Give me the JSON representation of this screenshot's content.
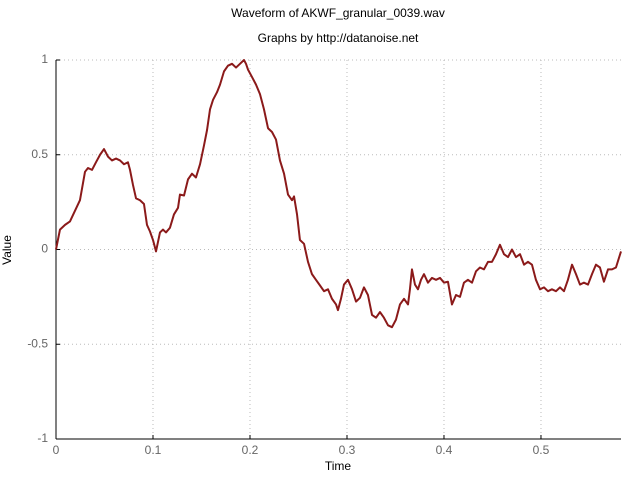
{
  "chart_data": {
    "type": "line",
    "title": "Waveform of AKWF_granular_0039.wav",
    "subtitle": "Graphs by http://datanoise.net",
    "x_label": "Time",
    "y_label": "Value",
    "color": "#8b1a1a",
    "grid": true,
    "xlim": [
      0,
      0.5825
    ],
    "ylim": [
      -1,
      1
    ],
    "xticks": [
      0,
      0.1,
      0.2,
      0.3,
      0.4,
      0.5
    ],
    "yticks": [
      -1,
      -0.5,
      0,
      0.5,
      1
    ],
    "x": [
      0,
      0.0041,
      0.0093,
      0.0144,
      0.0247,
      0.0299,
      0.033,
      0.0371,
      0.0412,
      0.0454,
      0.0495,
      0.0536,
      0.0577,
      0.0619,
      0.066,
      0.0701,
      0.0742,
      0.0763,
      0.0794,
      0.0825,
      0.0866,
      0.0907,
      0.0938,
      0.0969,
      0.1,
      0.1031,
      0.1072,
      0.1103,
      0.1134,
      0.1175,
      0.1216,
      0.1258,
      0.1278,
      0.132,
      0.1361,
      0.1402,
      0.1443,
      0.1485,
      0.1526,
      0.1557,
      0.1588,
      0.1619,
      0.166,
      0.1691,
      0.1732,
      0.1773,
      0.1814,
      0.1856,
      0.1897,
      0.1938,
      0.1959,
      0.1979,
      0.2021,
      0.2062,
      0.2103,
      0.2144,
      0.2186,
      0.2227,
      0.2268,
      0.2309,
      0.2351,
      0.2392,
      0.2433,
      0.2454,
      0.2485,
      0.2515,
      0.2557,
      0.2598,
      0.2639,
      0.268,
      0.2722,
      0.2763,
      0.2804,
      0.2845,
      0.2887,
      0.2907,
      0.2938,
      0.2969,
      0.301,
      0.3052,
      0.3093,
      0.3134,
      0.3175,
      0.3216,
      0.3258,
      0.3299,
      0.334,
      0.3381,
      0.3423,
      0.3464,
      0.3505,
      0.3546,
      0.3588,
      0.3629,
      0.3649,
      0.367,
      0.3701,
      0.3732,
      0.3763,
      0.3794,
      0.3835,
      0.3876,
      0.3918,
      0.3959,
      0.4,
      0.4041,
      0.4082,
      0.4124,
      0.4165,
      0.4206,
      0.4247,
      0.4289,
      0.433,
      0.4371,
      0.4412,
      0.4454,
      0.4495,
      0.4536,
      0.4577,
      0.4619,
      0.466,
      0.4701,
      0.4742,
      0.4784,
      0.4825,
      0.4866,
      0.4907,
      0.4948,
      0.499,
      0.5031,
      0.5072,
      0.5113,
      0.5155,
      0.5196,
      0.5237,
      0.5278,
      0.532,
      0.5361,
      0.5402,
      0.5443,
      0.5485,
      0.5526,
      0.5567,
      0.5608,
      0.5649,
      0.5691,
      0.5732,
      0.5773,
      0.5825
    ],
    "values": [
      0,
      0.105,
      0.13,
      0.148,
      0.26,
      0.41,
      0.43,
      0.42,
      0.46,
      0.5,
      0.53,
      0.49,
      0.47,
      0.48,
      0.47,
      0.45,
      0.46,
      0.42,
      0.34,
      0.27,
      0.26,
      0.24,
      0.13,
      0.095,
      0.05,
      -0.01,
      0.09,
      0.105,
      0.09,
      0.115,
      0.185,
      0.22,
      0.29,
      0.285,
      0.37,
      0.4,
      0.38,
      0.45,
      0.55,
      0.63,
      0.74,
      0.79,
      0.83,
      0.87,
      0.94,
      0.97,
      0.98,
      0.96,
      0.98,
      1.0,
      0.98,
      0.95,
      0.91,
      0.87,
      0.82,
      0.74,
      0.64,
      0.62,
      0.58,
      0.47,
      0.4,
      0.29,
      0.26,
      0.28,
      0.185,
      0.05,
      0.03,
      -0.065,
      -0.13,
      -0.16,
      -0.19,
      -0.22,
      -0.21,
      -0.26,
      -0.29,
      -0.32,
      -0.26,
      -0.185,
      -0.16,
      -0.21,
      -0.275,
      -0.255,
      -0.2,
      -0.24,
      -0.345,
      -0.36,
      -0.33,
      -0.36,
      -0.4,
      -0.41,
      -0.37,
      -0.29,
      -0.26,
      -0.29,
      -0.21,
      -0.105,
      -0.185,
      -0.21,
      -0.16,
      -0.13,
      -0.175,
      -0.15,
      -0.16,
      -0.15,
      -0.175,
      -0.17,
      -0.29,
      -0.24,
      -0.25,
      -0.175,
      -0.16,
      -0.175,
      -0.115,
      -0.095,
      -0.105,
      -0.065,
      -0.065,
      -0.025,
      0.025,
      -0.025,
      -0.04,
      0.0,
      -0.04,
      -0.025,
      -0.08,
      -0.065,
      -0.08,
      -0.16,
      -0.21,
      -0.2,
      -0.22,
      -0.21,
      -0.22,
      -0.2,
      -0.22,
      -0.16,
      -0.08,
      -0.13,
      -0.185,
      -0.175,
      -0.185,
      -0.13,
      -0.08,
      -0.095,
      -0.17,
      -0.105,
      -0.105,
      -0.095,
      -0.01
    ]
  }
}
